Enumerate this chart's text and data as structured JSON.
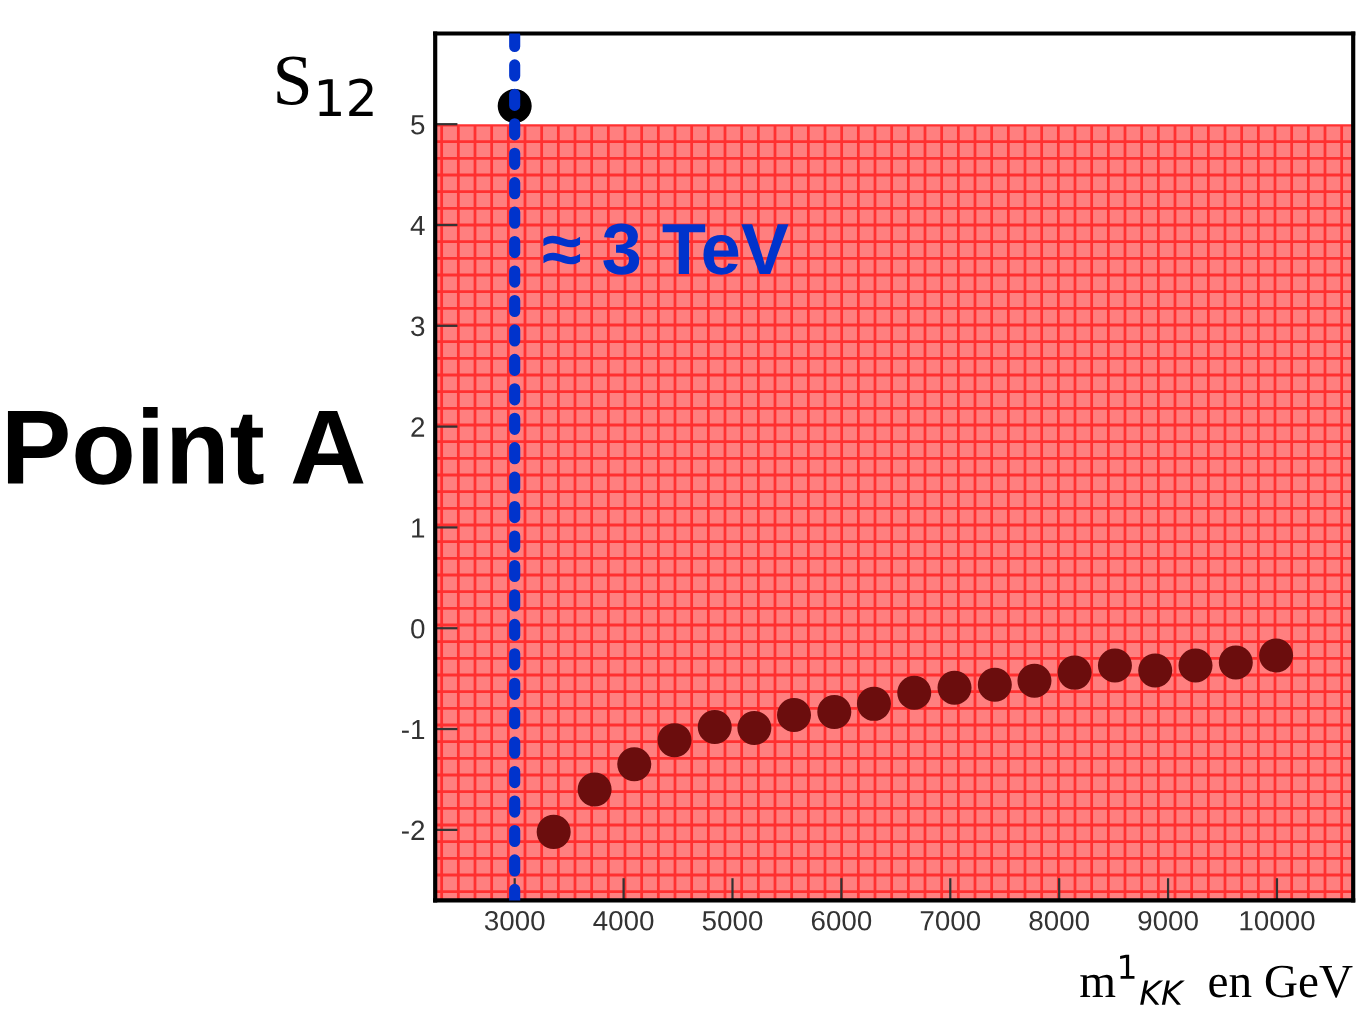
{
  "chart_data": {
    "type": "scatter",
    "ylabel": "S$_{12}$",
    "xlabel": "m$^{1}$$_{KK}$  en GeV",
    "annotations": [
      "Point A"
    ],
    "series": [
      {
        "color": "#6b0d0d",
        "x": [
          3358,
          3734,
          4098,
          4468,
          4837,
          5201,
          5565,
          5935,
          6299,
          6669,
          7039,
          7409,
          7773,
          8142,
          8512,
          8882,
          9252,
          9622,
          9992
        ],
        "values": [
          -2.02,
          -1.6,
          -1.35,
          -1.11,
          -0.98,
          -0.99,
          -0.86,
          -0.83,
          -0.75,
          -0.64,
          -0.59,
          -0.56,
          -0.52,
          -0.44,
          -0.37,
          -0.42,
          -0.37,
          -0.34,
          -0.27
        ]
      },
      {
        "color": "#000000",
        "x": [
          3000
        ],
        "values": [
          5.18
        ]
      }
    ],
    "marker": "circle",
    "xlim": [
      2270,
      10700
    ],
    "xticks": [
      3000,
      4000,
      5000,
      6000,
      7000,
      8000,
      9000,
      10000
    ],
    "ylim": [
      -2.7,
      5.9
    ],
    "yticks": [
      -2,
      -1,
      0,
      1,
      2,
      3,
      4,
      5
    ],
    "bands": [
      {
        "axis": "y",
        "from": -2.7,
        "to": 5,
        "color": "#ff7f7f"
      }
    ],
    "ref_lines": [
      {
        "axis": "x",
        "value": 3000,
        "label": "≈ 3 TeV",
        "color": "#0033cc",
        "line_style": "dotted"
      }
    ],
    "grid": false,
    "legend": false
  }
}
